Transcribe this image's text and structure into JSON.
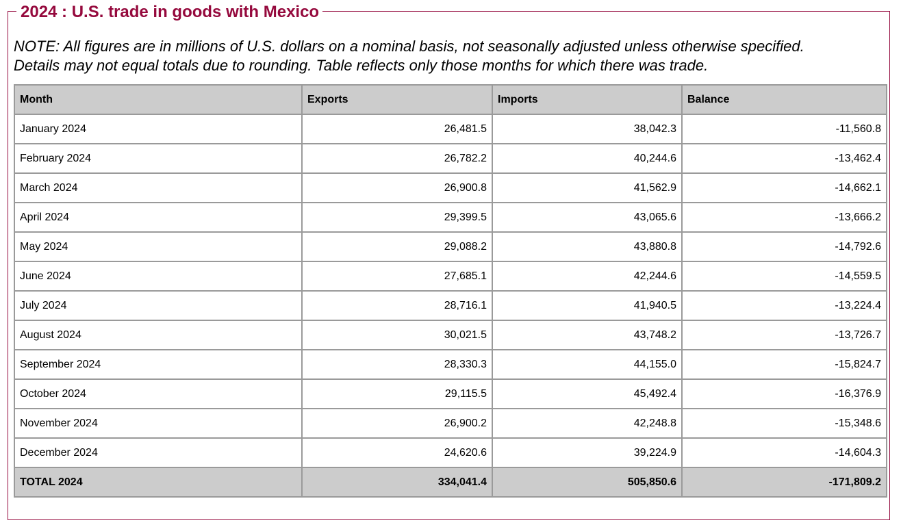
{
  "title": "2024 : U.S. trade in goods with Mexico",
  "note": {
    "line1": "NOTE: All figures are in millions of U.S. dollars on a nominal basis, not seasonally adjusted unless otherwise specified.",
    "line2": "Details may not equal totals due to rounding. Table reflects only those months for which there was trade."
  },
  "table": {
    "headers": [
      "Month",
      "Exports",
      "Imports",
      "Balance"
    ],
    "rows": [
      [
        "January 2024",
        "26,481.5",
        "38,042.3",
        "-11,560.8"
      ],
      [
        "February 2024",
        "26,782.2",
        "40,244.6",
        "-13,462.4"
      ],
      [
        "March 2024",
        "26,900.8",
        "41,562.9",
        "-14,662.1"
      ],
      [
        "April 2024",
        "29,399.5",
        "43,065.6",
        "-13,666.2"
      ],
      [
        "May 2024",
        "29,088.2",
        "43,880.8",
        "-14,792.6"
      ],
      [
        "June 2024",
        "27,685.1",
        "42,244.6",
        "-14,559.5"
      ],
      [
        "July 2024",
        "28,716.1",
        "41,940.5",
        "-13,224.4"
      ],
      [
        "August 2024",
        "30,021.5",
        "43,748.2",
        "-13,726.7"
      ],
      [
        "September 2024",
        "28,330.3",
        "44,155.0",
        "-15,824.7"
      ],
      [
        "October 2024",
        "29,115.5",
        "45,492.4",
        "-16,376.9"
      ],
      [
        "November 2024",
        "26,900.2",
        "42,248.8",
        "-15,348.6"
      ],
      [
        "December 2024",
        "24,620.6",
        "39,224.9",
        "-14,604.3"
      ]
    ],
    "total": [
      "TOTAL 2024",
      "334,041.4",
      "505,850.6",
      "-171,809.2"
    ]
  },
  "colors": {
    "accent": "#95093d",
    "header_bg": "#cccccc",
    "border": "#9a9a9a"
  }
}
